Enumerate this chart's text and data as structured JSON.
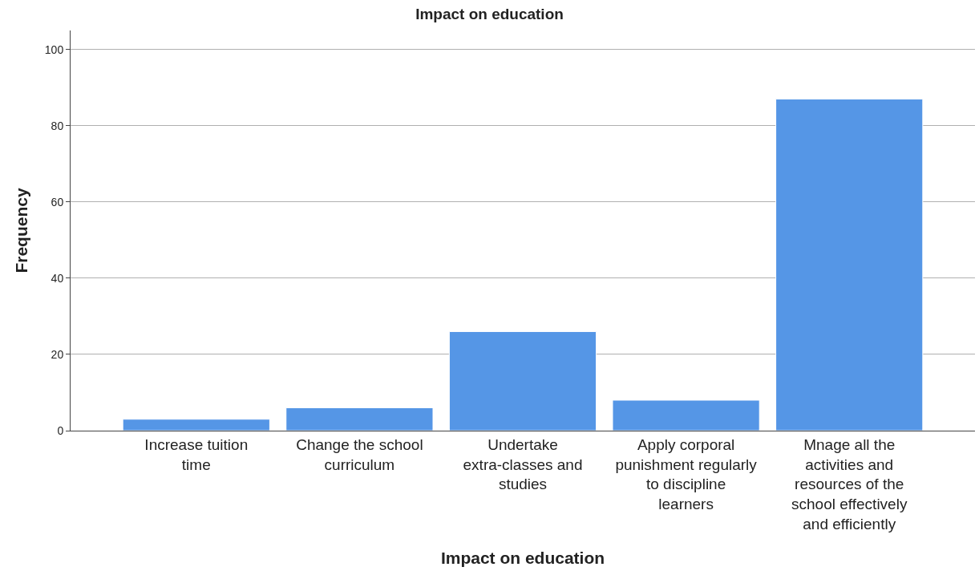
{
  "chart_data": {
    "type": "bar",
    "title": "Impact on education",
    "xlabel": "Impact on education",
    "ylabel": "Frequency",
    "categories": [
      "Increase tuition time",
      "Change the school curriculum",
      "Undertake extra-classes and studies",
      "Apply corporal punishment regularly to discipline learners",
      "Mnage all the activities and resources of the school effectively and efficiently"
    ],
    "values": [
      3,
      6,
      26,
      8,
      87
    ],
    "color": "#5596e6",
    "ylim": [
      0,
      105
    ],
    "yticks": [
      0,
      20,
      40,
      60,
      80,
      100
    ],
    "grid": "y"
  }
}
